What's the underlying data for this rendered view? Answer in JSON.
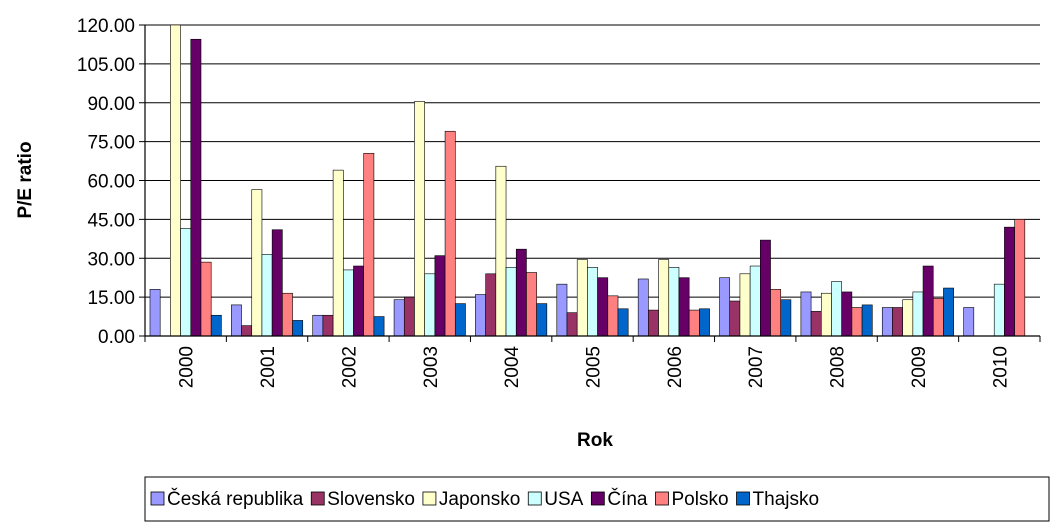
{
  "chart_data": {
    "type": "bar",
    "title": "",
    "xlabel": "Rok",
    "ylabel": "P/E ratio",
    "ylim": [
      0,
      120
    ],
    "yticks": [
      "0.00",
      "15.00",
      "30.00",
      "45.00",
      "60.00",
      "75.00",
      "90.00",
      "105.00",
      "120.00"
    ],
    "grid": true,
    "legend_position": "bottom",
    "categories": [
      "2000",
      "2001",
      "2002",
      "2003",
      "2004",
      "2005",
      "2006",
      "2007",
      "2008",
      "2009",
      "2010"
    ],
    "series": [
      {
        "name": "Česká republika",
        "color": "#9999ff",
        "values": [
          18,
          12,
          8,
          14,
          16,
          20,
          22,
          22.5,
          17,
          11,
          11
        ]
      },
      {
        "name": "Slovensko",
        "color": "#993366",
        "values": [
          null,
          4,
          8,
          15,
          24,
          9,
          10,
          13.5,
          9.5,
          11,
          null
        ]
      },
      {
        "name": "Japonsko",
        "color": "#ffffcc",
        "values": [
          122,
          56.5,
          64,
          90.5,
          65.5,
          29.5,
          29.5,
          24,
          16.5,
          14,
          null
        ]
      },
      {
        "name": "USA",
        "color": "#ccffff",
        "values": [
          41.5,
          31.5,
          25.5,
          24,
          26.5,
          26.5,
          26.5,
          27,
          21,
          17,
          20
        ]
      },
      {
        "name": "Čína",
        "color": "#660066",
        "values": [
          114.5,
          41,
          27,
          31,
          33.5,
          22.5,
          22.5,
          37,
          17,
          27,
          42
        ]
      },
      {
        "name": "Polsko",
        "color": "#ff8080",
        "values": [
          28.5,
          16.5,
          70.5,
          79,
          24.5,
          15.5,
          10,
          18,
          11,
          14.5,
          45
        ]
      },
      {
        "name": "Thajsko",
        "color": "#0066cc",
        "values": [
          8,
          6,
          7.5,
          12.5,
          12.5,
          10.5,
          10.5,
          14,
          12,
          18.5,
          null
        ]
      }
    ]
  }
}
